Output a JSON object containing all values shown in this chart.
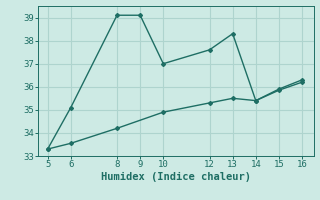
{
  "xlabel": "Humidex (Indice chaleur)",
  "background_color": "#cdeae4",
  "line_color": "#1e6e64",
  "grid_color": "#aed4ce",
  "line1_x": [
    5,
    6,
    8,
    9,
    10,
    12,
    13,
    14,
    15,
    16
  ],
  "line1_y": [
    33.3,
    35.1,
    39.1,
    39.1,
    37.0,
    37.6,
    38.3,
    35.4,
    35.9,
    36.3
  ],
  "line2_x": [
    5,
    6,
    8,
    10,
    12,
    13,
    14,
    15,
    16
  ],
  "line2_y": [
    33.3,
    33.55,
    34.2,
    34.9,
    35.3,
    35.5,
    35.4,
    35.85,
    36.2
  ],
  "xlim": [
    4.6,
    16.5
  ],
  "ylim": [
    33.0,
    39.5
  ],
  "xticks": [
    5,
    6,
    8,
    9,
    10,
    12,
    13,
    14,
    15,
    16
  ],
  "yticks": [
    33,
    34,
    35,
    36,
    37,
    38,
    39
  ],
  "tick_fontsize": 6.5,
  "xlabel_fontsize": 7.5
}
